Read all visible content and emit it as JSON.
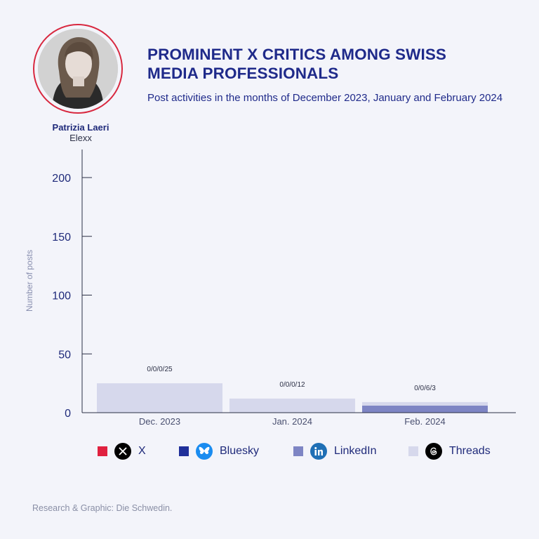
{
  "header": {
    "title_line1": "PROMINENT X CRITICS AMONG SWISS",
    "title_line2": "MEDIA PROFESSIONALS",
    "subtitle": "Post activities in the months of December 2023, January and February 2024"
  },
  "profile": {
    "name": "Patrizia Laeri",
    "organization": "Elexx"
  },
  "chart_data": {
    "type": "bar",
    "stacked": true,
    "categories": [
      "Dec. 2023",
      "Jan. 2024",
      "Feb. 2024"
    ],
    "series": [
      {
        "name": "X",
        "values": [
          0,
          0,
          0
        ],
        "color": "#e0213f"
      },
      {
        "name": "Bluesky",
        "values": [
          0,
          0,
          0
        ],
        "color": "#20309a"
      },
      {
        "name": "LinkedIn",
        "values": [
          0,
          0,
          6
        ],
        "color": "#7e85c4"
      },
      {
        "name": "Threads",
        "values": [
          25,
          12,
          3
        ],
        "color": "#d6d8ec"
      }
    ],
    "data_labels": [
      "0/0/0/25",
      "0/0/0/12",
      "0/0/6/3"
    ],
    "ylabel": "Number of posts",
    "xlabel": "",
    "ylim": [
      0,
      220
    ],
    "yticks": [
      0,
      50,
      100,
      150,
      200
    ],
    "grid": false,
    "legend_position": "bottom"
  },
  "legend": [
    {
      "label": "X",
      "color": "#e0213f",
      "icon": "x-logo-icon"
    },
    {
      "label": "Bluesky",
      "color": "#20309a",
      "icon": "bluesky-butterfly-icon"
    },
    {
      "label": "LinkedIn",
      "color": "#7e85c4",
      "icon": "linkedin-logo-icon"
    },
    {
      "label": "Threads",
      "color": "#d6d8ec",
      "icon": "threads-logo-icon"
    }
  ],
  "footer": {
    "credit": "Research & Graphic: Die Schwedin."
  }
}
